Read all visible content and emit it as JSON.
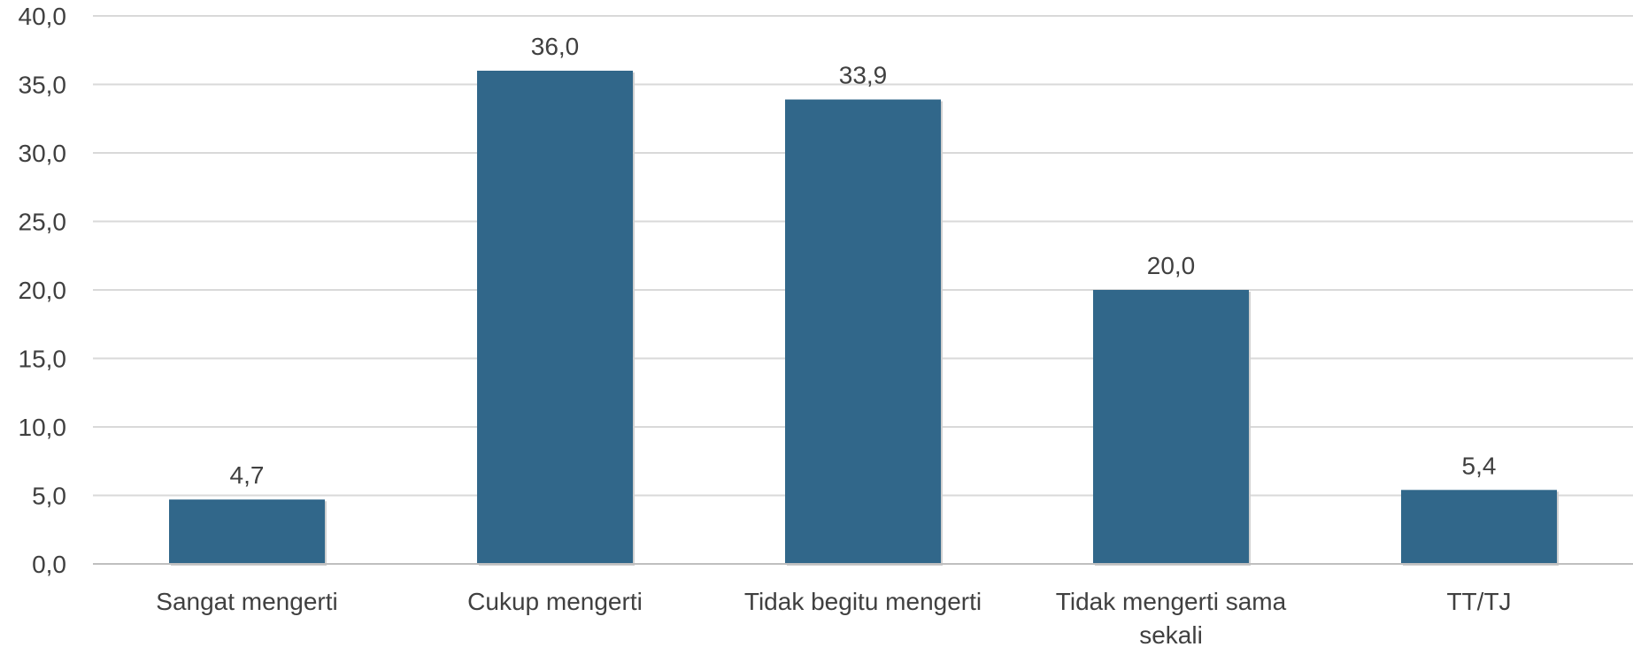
{
  "chart_data": {
    "type": "bar",
    "categories": [
      "Sangat mengerti",
      "Cukup mengerti",
      "Tidak begitu mengerti",
      "Tidak mengerti sama sekali",
      "TT/TJ"
    ],
    "category_lines": [
      [
        "Sangat mengerti"
      ],
      [
        "Cukup mengerti"
      ],
      [
        "Tidak begitu mengerti"
      ],
      [
        "Tidak mengerti sama",
        "sekali"
      ],
      [
        "TT/TJ"
      ]
    ],
    "values": [
      4.7,
      36.0,
      33.9,
      20.0,
      5.4
    ],
    "value_labels": [
      "4,7",
      "36,0",
      "33,9",
      "20,0",
      "5,4"
    ],
    "ylim": [
      0,
      40
    ],
    "yticks": [
      0,
      5,
      10,
      15,
      20,
      25,
      30,
      35,
      40
    ],
    "ytick_labels": [
      "0,0",
      "5,0",
      "10,0",
      "15,0",
      "20,0",
      "25,0",
      "30,0",
      "35,0",
      "40,0"
    ],
    "grid": true,
    "legend": "none",
    "bar_color": "#31678a",
    "title": "",
    "xlabel": "",
    "ylabel": ""
  }
}
